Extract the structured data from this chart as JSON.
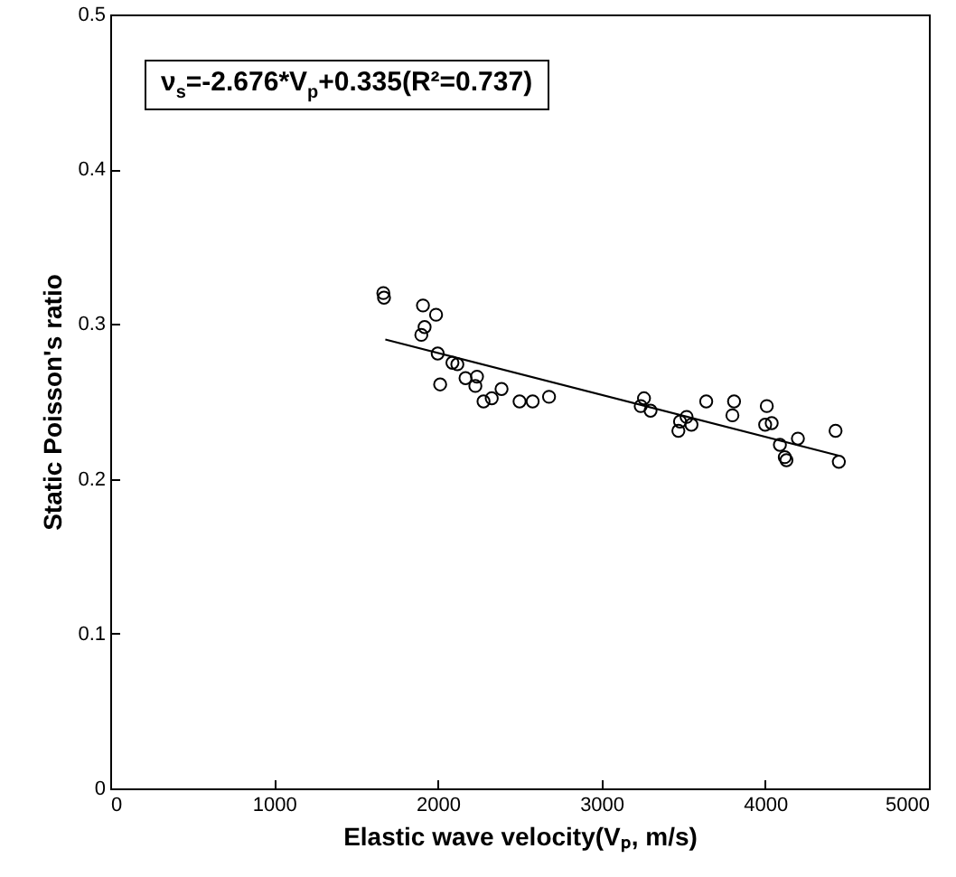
{
  "chart_data": {
    "type": "scatter",
    "xlabel": "Elastic wave velocity(Vₚ, m/s)",
    "ylabel": "Static Poisson's ratio",
    "annotations": [
      "ν$_{s}$=-2.676*V$_{p}$+0.335(R²=0.737)"
    ],
    "xlim": [
      0,
      5000
    ],
    "xticks": [
      0,
      1000,
      2000,
      3000,
      4000,
      5000
    ],
    "ylim": [
      0,
      0.5
    ],
    "yticks": [
      0,
      0.1,
      0.2,
      0.3,
      0.4,
      0.5
    ],
    "grid": false,
    "series": [
      {
        "marker": "circle",
        "color": "#000000",
        "x": [
          1668,
          1672,
          1910,
          1990,
          1920,
          1900,
          2000,
          2015,
          2090,
          2120,
          2170,
          2230,
          2240,
          2280,
          2330,
          2390,
          2500,
          2580,
          2680,
          3240,
          3260,
          3300,
          3470,
          3480,
          3520,
          3550,
          3640,
          3800,
          3810,
          4000,
          4010,
          4040,
          4090,
          4120,
          4130,
          4200,
          4430,
          4450
        ],
        "values": [
          0.32,
          0.317,
          0.312,
          0.306,
          0.298,
          0.293,
          0.281,
          0.261,
          0.275,
          0.274,
          0.265,
          0.26,
          0.266,
          0.25,
          0.252,
          0.258,
          0.25,
          0.25,
          0.253,
          0.247,
          0.252,
          0.244,
          0.231,
          0.237,
          0.24,
          0.235,
          0.25,
          0.241,
          0.25,
          0.235,
          0.247,
          0.236,
          0.222,
          0.214,
          0.212,
          0.226,
          0.231,
          0.211
        ]
      },
      {
        "type": "line",
        "color": "#000000",
        "x": [
          1680,
          4450
        ],
        "values": [
          0.29,
          0.215
        ]
      }
    ]
  }
}
